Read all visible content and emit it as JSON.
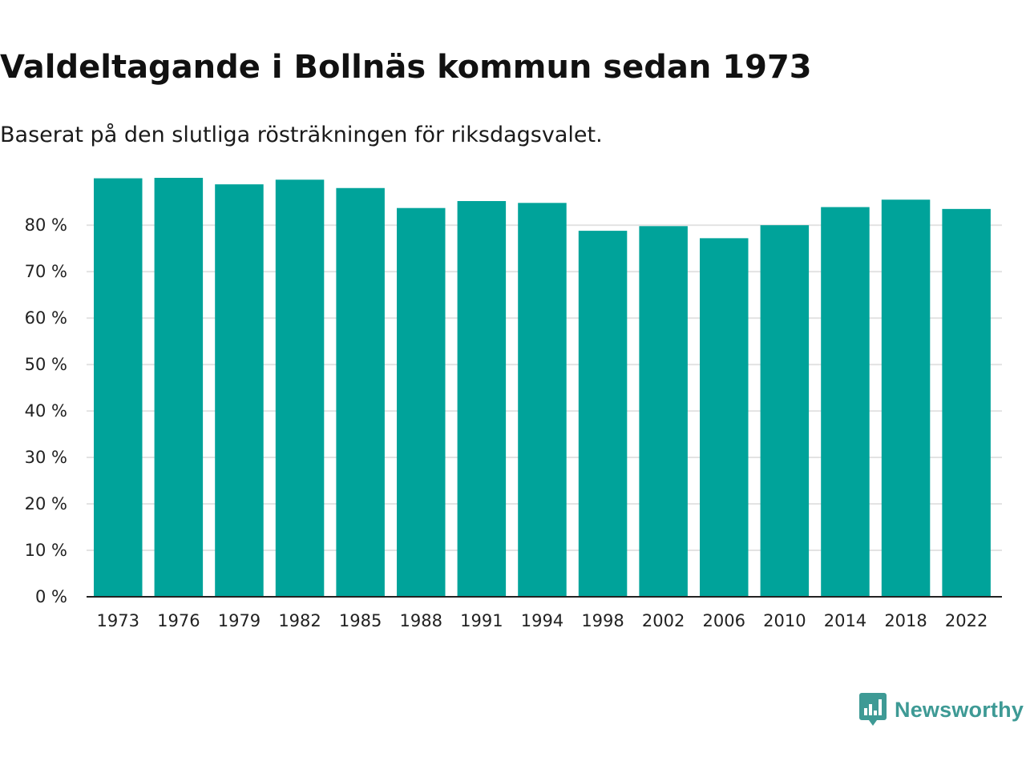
{
  "chart_data": {
    "type": "bar",
    "title": "Valdeltagande i Bollnäs kommun sedan 1973",
    "subtitle": "Baserat på den slutliga rösträkningen för riksdagsvalet.",
    "categories": [
      "1973",
      "1976",
      "1979",
      "1982",
      "1985",
      "1988",
      "1991",
      "1994",
      "1998",
      "2002",
      "2006",
      "2010",
      "2014",
      "2018",
      "2022"
    ],
    "values": [
      90.1,
      90.2,
      88.8,
      89.8,
      88.0,
      83.7,
      85.2,
      84.8,
      78.8,
      79.8,
      77.2,
      80.0,
      83.9,
      85.5,
      83.5
    ],
    "ylim": [
      0,
      90.2
    ],
    "yticks": [
      0,
      10,
      20,
      30,
      40,
      50,
      60,
      70,
      80
    ],
    "ytick_labels": [
      "0 %",
      "10 %",
      "20 %",
      "30 %",
      "40 %",
      "50 %",
      "60 %",
      "70 %",
      "80 %"
    ],
    "xlabel": "",
    "ylabel": "",
    "grid": true,
    "bar_color": "#00a39a",
    "grid_color": "#e3e3e3",
    "axis_color": "#222222"
  },
  "branding": {
    "logo_text": "Newsworthy",
    "logo_icon": "bar-chart-speech-bubble-icon",
    "color": "#3e9a95"
  }
}
